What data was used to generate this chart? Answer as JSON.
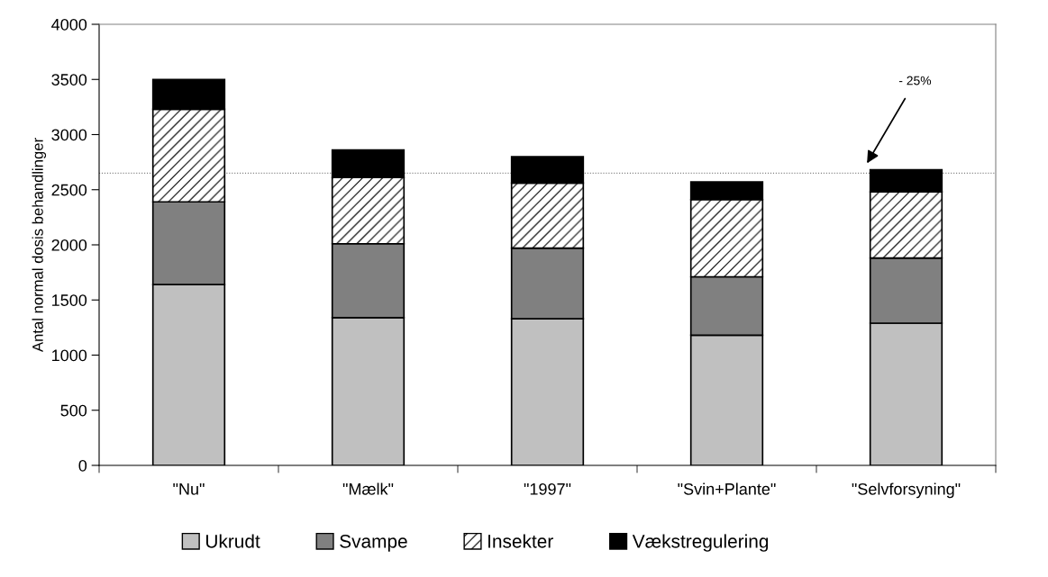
{
  "chart_data": {
    "type": "bar",
    "stacked": true,
    "ylabel": "Antal normal dosis behandlinger",
    "categories": [
      "\"Nu\"",
      "\"Mælk\"",
      "\"1997\"",
      "\"Svin+Plante\"",
      "\"Selvforsyning\""
    ],
    "series": [
      {
        "name": "Ukrudt",
        "color": "#c0c0c0",
        "values": [
          1640,
          1340,
          1330,
          1180,
          1290
        ]
      },
      {
        "name": "Svampe",
        "color": "#808080",
        "values": [
          750,
          670,
          640,
          530,
          590
        ]
      },
      {
        "name": "Insekter",
        "color": "#ffffff",
        "values": [
          840,
          600,
          590,
          700,
          600
        ]
      },
      {
        "name": "Vækstregulering",
        "color": "#000000",
        "values": [
          270,
          250,
          240,
          160,
          200
        ]
      }
    ],
    "ylim": [
      0,
      4000
    ],
    "yticks": [
      0,
      500,
      1000,
      1500,
      2000,
      2500,
      3000,
      3500,
      4000
    ],
    "ref_lines": [
      {
        "axis": "y",
        "value": 2650,
        "color": "#808080",
        "line_style": "dotted"
      }
    ],
    "annotations": [
      "- 25%"
    ],
    "grid": false,
    "legend": "bottom"
  }
}
